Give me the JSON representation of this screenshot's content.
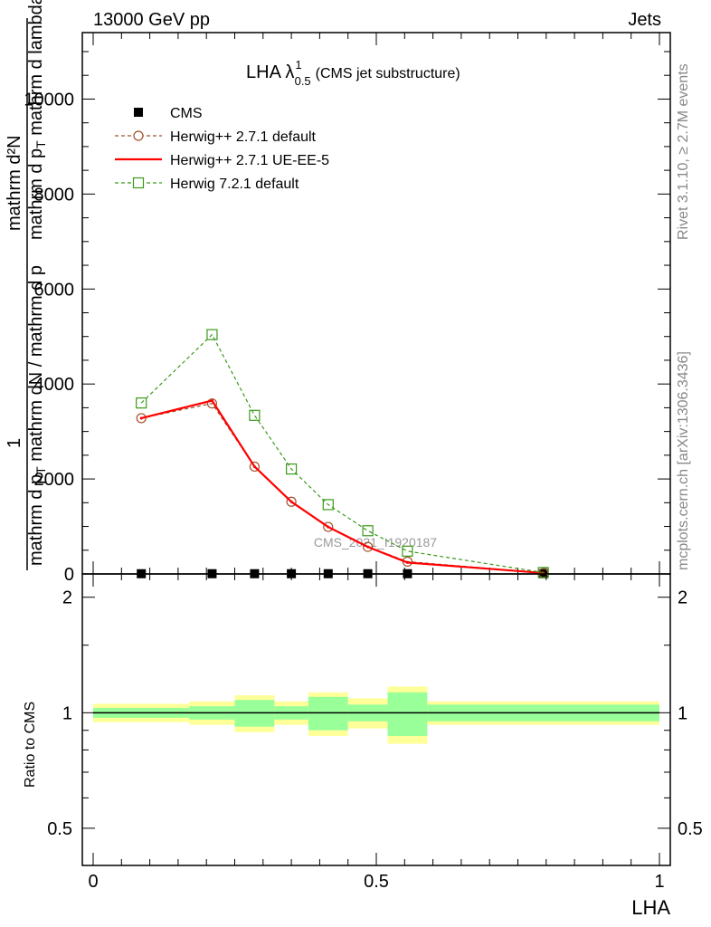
{
  "header": {
    "energy": "13000 GeV pp",
    "category": "Jets"
  },
  "side_labels": {
    "rivet": "Rivet 3.1.10, ≥ 2.7M events",
    "site": "mcplots.cern.ch [arXiv:1306.3436]"
  },
  "title": {
    "main": "LHA λ",
    "sup": "1",
    "sub": "0.5",
    "suffix": "(CMS jet substructure)"
  },
  "watermark": "CMS_2021_I1920187",
  "ylabel_main": {
    "numerator_one": "1",
    "numerator_dN": "mathrm d²N",
    "den_top": "mathrm d p",
    "den_top_sub": "T",
    "den_top_tail": " mathrm d lambda",
    "den_bottom": "mathrm d p",
    "den_bottom_sub": "T",
    "den_bottom_tail": " mathrm dN / mathrm d p",
    "den_bottom_sub2": "T",
    "den_bottom_tail2": " mathrm dN"
  },
  "ylabel_ratio": "Ratio to CMS",
  "xlabel": "LHA",
  "legend": [
    {
      "label": "CMS",
      "color": "#000000",
      "marker": "filled-square"
    },
    {
      "label": "Herwig++ 2.7.1 default",
      "color": "#a0522d",
      "marker": "open-circle"
    },
    {
      "label": "Herwig++ 2.7.1 UE-EE-5",
      "color": "#ff0000",
      "marker": "none"
    },
    {
      "label": "Herwig 7.2.1 default",
      "color": "#3a9a1a",
      "marker": "open-square"
    }
  ],
  "chart_data": {
    "type": "line",
    "main": {
      "ylim": [
        0,
        11400
      ],
      "yticks": [
        0,
        2000,
        4000,
        6000,
        8000,
        10000
      ],
      "ytick_labels": [
        "0",
        "2000",
        "4000",
        "6000",
        "8000",
        "10000"
      ],
      "x": [
        0.085,
        0.21,
        0.285,
        0.35,
        0.415,
        0.485,
        0.555,
        0.795
      ],
      "series": [
        {
          "name": "CMS",
          "values": [
            5,
            5,
            5,
            5,
            5,
            5,
            5,
            5
          ]
        },
        {
          "name": "Herwig++ 2.7.1 default",
          "values": [
            3280,
            3590,
            2260,
            1520,
            990,
            570,
            260,
            20
          ]
        },
        {
          "name": "Herwig++ 2.7.1 UE-EE-5",
          "values": [
            3280,
            3650,
            2260,
            1520,
            990,
            570,
            240,
            20
          ]
        },
        {
          "name": "Herwig 7.2.1 default",
          "values": [
            3600,
            5040,
            3340,
            2210,
            1460,
            910,
            480,
            30
          ]
        }
      ]
    },
    "ratio": {
      "ylim": [
        0.4,
        2.3
      ],
      "yticks": [
        0.5,
        1,
        2
      ],
      "ytick_labels": [
        "0.5",
        "1",
        "2"
      ],
      "xlim": [
        0,
        1
      ],
      "xticks": [
        0,
        0.5,
        1
      ],
      "xtick_labels": [
        "0",
        "0.5",
        "1"
      ],
      "bins": [
        {
          "x0": 0.0,
          "x1": 0.17,
          "stat": 0.03,
          "total": 0.055
        },
        {
          "x0": 0.17,
          "x1": 0.25,
          "stat": 0.04,
          "total": 0.07
        },
        {
          "x0": 0.25,
          "x1": 0.32,
          "stat": 0.08,
          "total": 0.11
        },
        {
          "x0": 0.32,
          "x1": 0.38,
          "stat": 0.04,
          "total": 0.07
        },
        {
          "x0": 0.38,
          "x1": 0.45,
          "stat": 0.1,
          "total": 0.13
        },
        {
          "x0": 0.45,
          "x1": 0.52,
          "stat": 0.05,
          "total": 0.09
        },
        {
          "x0": 0.52,
          "x1": 0.59,
          "stat": 0.13,
          "total": 0.17
        },
        {
          "x0": 0.59,
          "x1": 1.0,
          "stat": 0.05,
          "total": 0.07
        }
      ],
      "reference": 1
    }
  }
}
